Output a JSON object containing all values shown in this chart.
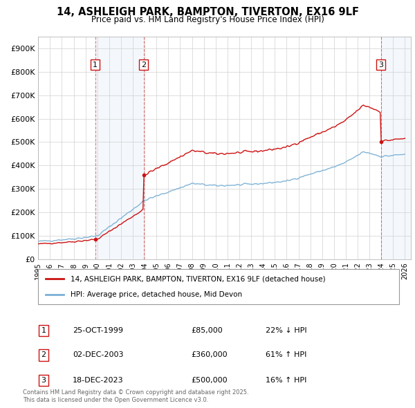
{
  "title": "14, ASHLEIGH PARK, BAMPTON, TIVERTON, EX16 9LF",
  "subtitle": "Price paid vs. HM Land Registry's House Price Index (HPI)",
  "legend_line1": "14, ASHLEIGH PARK, BAMPTON, TIVERTON, EX16 9LF (detached house)",
  "legend_line2": "HPI: Average price, detached house, Mid Devon",
  "hpi_color": "#7ab0d4",
  "price_color": "#cc1111",
  "transactions": [
    {
      "num": 1,
      "date_val": 1999.82,
      "price": 85000,
      "label": "25-OCT-1999",
      "price_str": "£85,000",
      "hpi_str": "22% ↓ HPI"
    },
    {
      "num": 2,
      "date_val": 2003.92,
      "price": 360000,
      "label": "02-DEC-2003",
      "price_str": "£360,000",
      "hpi_str": "61% ↑ HPI"
    },
    {
      "num": 3,
      "date_val": 2023.97,
      "price": 500000,
      "label": "18-DEC-2023",
      "price_str": "£500,000",
      "hpi_str": "16% ↑ HPI"
    }
  ],
  "footnote1": "Contains HM Land Registry data © Crown copyright and database right 2025.",
  "footnote2": "This data is licensed under the Open Government Licence v3.0.",
  "ylim": [
    0,
    950000
  ],
  "xlim_start": 1995.0,
  "xlim_end": 2026.5,
  "yticks": [
    0,
    100000,
    200000,
    300000,
    400000,
    500000,
    600000,
    700000,
    800000,
    900000
  ],
  "ytick_labels": [
    "£0",
    "£100K",
    "£200K",
    "£300K",
    "£400K",
    "£500K",
    "£600K",
    "£700K",
    "£800K",
    "£900K"
  ]
}
